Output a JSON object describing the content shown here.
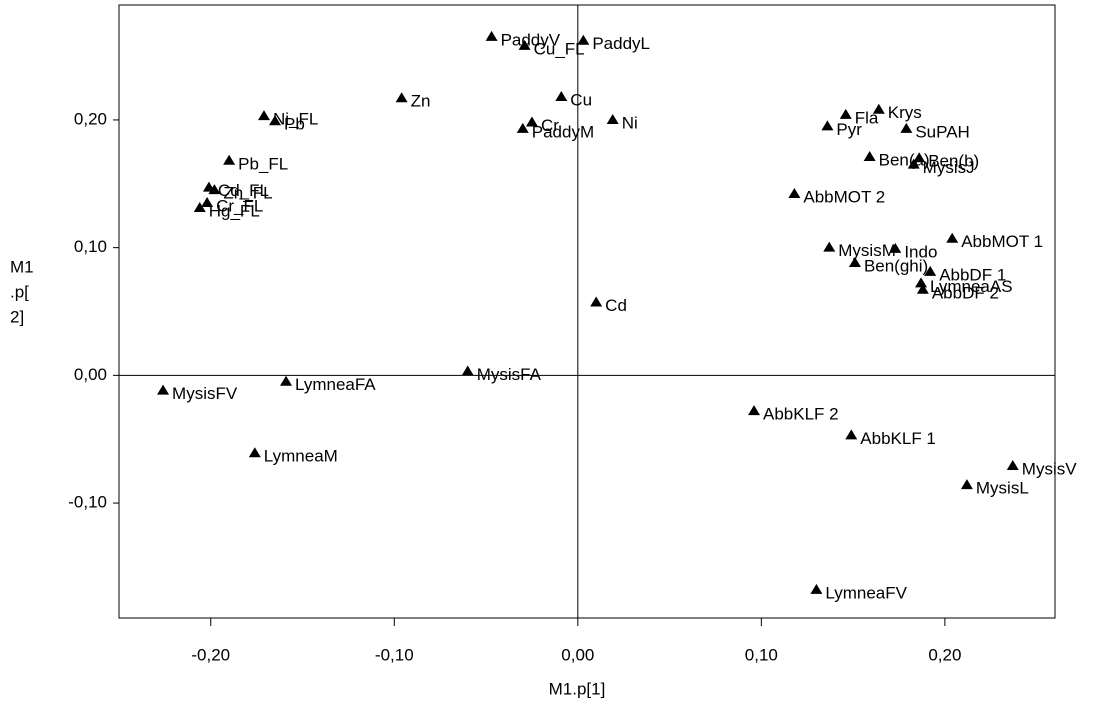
{
  "chart_data": {
    "type": "scatter",
    "x_label": "M1.p[1]",
    "y_label_lines": [
      "M1",
      ".p[",
      "2]"
    ],
    "xlim": [
      -0.25,
      0.26
    ],
    "ylim": [
      -0.19,
      0.29
    ],
    "xticks": [
      {
        "value": -0.2,
        "label": "-0,20"
      },
      {
        "value": -0.1,
        "label": "-0,10"
      },
      {
        "value": 0,
        "label": "0,00"
      },
      {
        "value": 0.1,
        "label": "0,10"
      },
      {
        "value": 0.2,
        "label": "0,20"
      }
    ],
    "yticks": [
      {
        "value": -0.1,
        "label": "-0,10"
      },
      {
        "value": 0,
        "label": "0,00"
      },
      {
        "value": 0.1,
        "label": "0,10"
      },
      {
        "value": 0.2,
        "label": "0,20"
      }
    ],
    "zero_lines": true,
    "color": "#000000",
    "labels": [
      "PaddyV",
      "Cu_FL",
      "PaddyL",
      "Zn",
      "Cu",
      "Ni",
      "Cr",
      "PaddyM",
      "Ni_FL",
      "Pb",
      "Pb_FL",
      "Cd_FL",
      "Zn_FL",
      "Cr_FL",
      "Hg_FL",
      "Fla",
      "Krys",
      "Pyr",
      "SuPAH",
      "Ben(a)",
      "Ben(b)",
      "MysisJ",
      "AbbMOT 2",
      "AbbMOT 1",
      "MysisM",
      "Indo",
      "Ben(ghi)",
      "AbbDF 1",
      "LymneaAS",
      "AbbDF 2",
      "Cd",
      "MysisFA",
      "LymneaFA",
      "MysisFV",
      "LymneaM",
      "AbbKLF 2",
      "AbbKLF 1",
      "MysisV",
      "MysisL",
      "LymneaFV"
    ],
    "x": [
      -0.047,
      -0.029,
      0.003,
      -0.096,
      -0.009,
      0.019,
      -0.025,
      -0.03,
      -0.171,
      -0.165,
      -0.19,
      -0.201,
      -0.198,
      -0.202,
      -0.206,
      0.146,
      0.164,
      0.136,
      0.179,
      0.159,
      0.186,
      0.183,
      0.118,
      0.204,
      0.137,
      0.173,
      0.151,
      0.192,
      0.187,
      0.188,
      0.01,
      -0.06,
      -0.159,
      -0.226,
      -0.176,
      0.096,
      0.149,
      0.237,
      0.212,
      0.13
    ],
    "y": [
      0.265,
      0.258,
      0.262,
      0.217,
      0.218,
      0.2,
      0.198,
      0.193,
      0.203,
      0.199,
      0.168,
      0.147,
      0.145,
      0.135,
      0.131,
      0.204,
      0.208,
      0.195,
      0.193,
      0.171,
      0.17,
      0.165,
      0.142,
      0.107,
      0.1,
      0.099,
      0.088,
      0.081,
      0.072,
      0.067,
      0.057,
      0.003,
      -0.005,
      -0.012,
      -0.061,
      -0.028,
      -0.047,
      -0.071,
      -0.086,
      -0.168
    ]
  }
}
